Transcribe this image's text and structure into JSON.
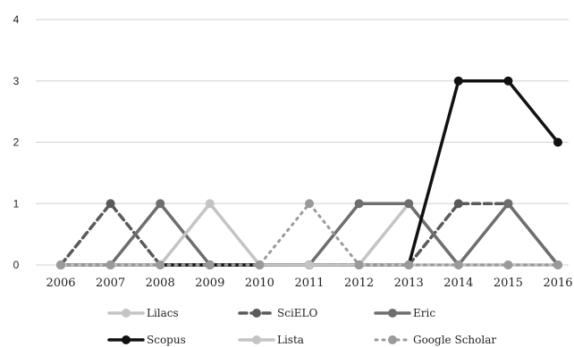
{
  "chart_data": {
    "type": "line",
    "title": "",
    "xlabel": "",
    "ylabel": "",
    "x": [
      "2006",
      "2007",
      "2008",
      "2009",
      "2010",
      "2011",
      "2012",
      "2013",
      "2014",
      "2015",
      "2016"
    ],
    "ylim": [
      0,
      4
    ],
    "yticks": [
      "0",
      "1",
      "2",
      "3",
      "4"
    ],
    "grid": "horizontal",
    "legend_position": "bottom",
    "series": [
      {
        "name": "Lilacs",
        "values": [
          0,
          0,
          0,
          0,
          0,
          0,
          0,
          1,
          0,
          0,
          0
        ],
        "color": "#c4c4c4",
        "dash": "solid"
      },
      {
        "name": "SciELO",
        "values": [
          0,
          1,
          0,
          0,
          0,
          0,
          0,
          0,
          1,
          1,
          0
        ],
        "color": "#5a5a5a",
        "dash": "dashed"
      },
      {
        "name": "Eric",
        "values": [
          0,
          0,
          1,
          0,
          0,
          0,
          1,
          1,
          0,
          1,
          0
        ],
        "color": "#6e6e6e",
        "dash": "solid"
      },
      {
        "name": "Scopus",
        "values": [
          0,
          0,
          0,
          0,
          0,
          0,
          0,
          0,
          3,
          3,
          2
        ],
        "color": "#111111",
        "dash": "solid"
      },
      {
        "name": "Lista",
        "values": [
          0,
          0,
          0,
          1,
          0,
          0,
          0,
          0,
          0,
          0,
          0
        ],
        "color": "#c4c4c4",
        "dash": "solid"
      },
      {
        "name": "Google Scholar",
        "values": [
          0,
          0,
          0,
          0,
          0,
          1,
          0,
          0,
          0,
          0,
          0
        ],
        "color": "#9a9a9a",
        "dash": "dotted"
      }
    ]
  }
}
